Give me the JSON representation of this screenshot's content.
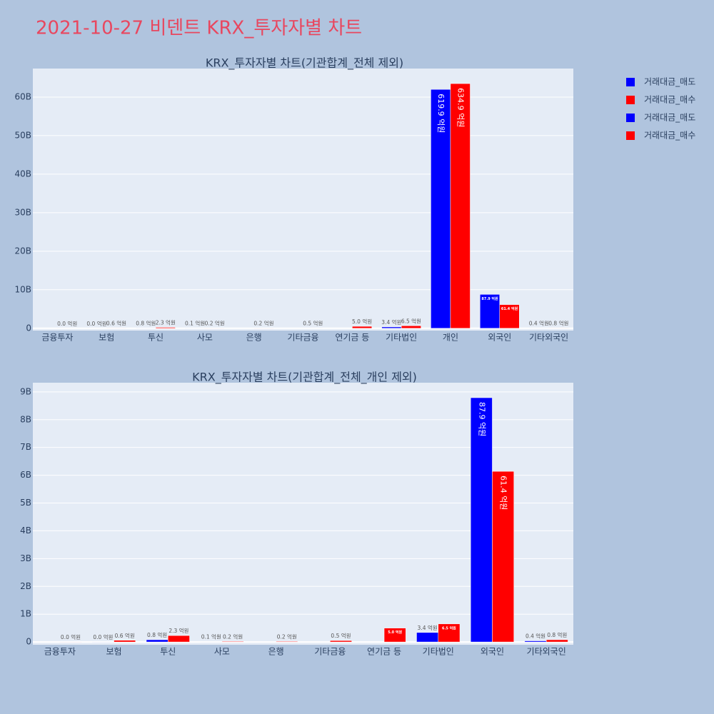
{
  "title": "2021-10-27 비덴트 KRX_투자자별 차트",
  "chart_data": [
    {
      "type": "bar",
      "title": "KRX_투자자별 차트(기관합계_전체 제외)",
      "categories": [
        "금융투자",
        "보험",
        "투신",
        "사모",
        "은행",
        "기타금융",
        "연기금 등",
        "기타법인",
        "개인",
        "외국인",
        "기타외국인"
      ],
      "series": [
        {
          "name": "거래대금_매도",
          "color": "#0000ff",
          "values": [
            null,
            0,
            80000000,
            10000000,
            null,
            null,
            null,
            340000000,
            61990000000,
            8790000000,
            40000000
          ],
          "value_labels": [
            null,
            "0.0 억원",
            "0.8 억원",
            "0.1 억원",
            null,
            null,
            null,
            "3.4 억원",
            "619.9 억원",
            "87.9 억원",
            "0.4 억원"
          ]
        },
        {
          "name": "거래대금_매수",
          "color": "#ff0000",
          "values": [
            0,
            60000000,
            230000000,
            20000000,
            20000000,
            50000000,
            500000000,
            650000000,
            63490000000,
            6140000000,
            80000000
          ],
          "value_labels": [
            "0.0 억원",
            "0.6 억원",
            "2.3 억원",
            "0.2 억원",
            "0.2 억원",
            "0.5 억원",
            "5.0 억원",
            "6.5 억원",
            "634.9 억원",
            "61.4 억원",
            "0.8 억원"
          ]
        }
      ],
      "ylim": [
        -600000000,
        67400000000
      ],
      "yticks": [
        0,
        {
          "value": 10000000000,
          "label": "10B"
        },
        {
          "value": 20000000000,
          "label": "20B"
        },
        {
          "value": 30000000000,
          "label": "30B"
        },
        {
          "value": 40000000000,
          "label": "40B"
        },
        {
          "value": 50000000000,
          "label": "50B"
        },
        {
          "value": 60000000000,
          "label": "60B"
        }
      ],
      "grid": true
    },
    {
      "type": "bar",
      "title": "KRX_투자자별 차트(기관합계_전체_개인 제외)",
      "categories": [
        "금융투자",
        "보험",
        "투신",
        "사모",
        "은행",
        "기타금융",
        "연기금 등",
        "기타법인",
        "외국인",
        "기타외국인"
      ],
      "series": [
        {
          "name": "거래대금_매도",
          "color": "#0000ff",
          "values": [
            null,
            0,
            80000000,
            10000000,
            null,
            null,
            null,
            340000000,
            8790000000,
            40000000
          ],
          "value_labels": [
            null,
            "0.0 억원",
            "0.8 억원",
            "0.1 억원",
            null,
            null,
            null,
            "3.4 억원",
            "87.9 억원",
            "0.4 억원"
          ]
        },
        {
          "name": "거래대금_매수",
          "color": "#ff0000",
          "values": [
            0,
            60000000,
            230000000,
            20000000,
            20000000,
            50000000,
            500000000,
            650000000,
            6140000000,
            80000000
          ],
          "value_labels": [
            "0.0 억원",
            "0.6 억원",
            "2.3 억원",
            "0.2 억원",
            "0.2 억원",
            "0.5 억원",
            "5.0 억원",
            "6.5 억원",
            "61.4 억원",
            "0.8 억원"
          ]
        }
      ],
      "ylim": [
        -100000000,
        9330000000
      ],
      "yticks": [
        0,
        {
          "value": 1000000000,
          "label": "1B"
        },
        {
          "value": 2000000000,
          "label": "2B"
        },
        {
          "value": 3000000000,
          "label": "3B"
        },
        {
          "value": 4000000000,
          "label": "4B"
        },
        {
          "value": 5000000000,
          "label": "5B"
        },
        {
          "value": 6000000000,
          "label": "6B"
        },
        {
          "value": 7000000000,
          "label": "7B"
        },
        {
          "value": 8000000000,
          "label": "8B"
        },
        {
          "value": 9000000000,
          "label": "9B"
        }
      ],
      "grid": true
    }
  ]
}
